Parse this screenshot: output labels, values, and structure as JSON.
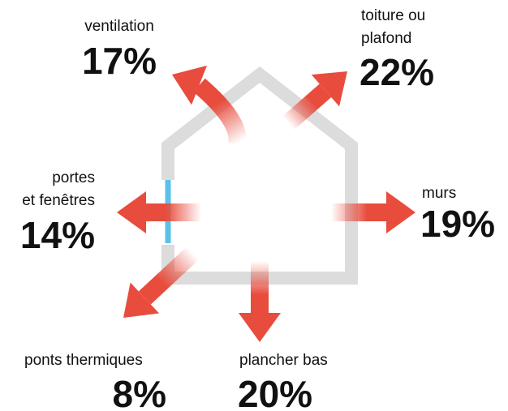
{
  "items": [
    {
      "label": [
        "ventilation"
      ],
      "value": "17%"
    },
    {
      "label": [
        "toiture ou",
        "plafond"
      ],
      "value": "22%"
    },
    {
      "label": [
        "murs"
      ],
      "value": "19%"
    },
    {
      "label": [
        "portes",
        "et fenêtres"
      ],
      "value": "14%"
    },
    {
      "label": [
        "ponts thermiques"
      ],
      "value": "8%"
    },
    {
      "label": [
        "plancher bas"
      ],
      "value": "20%"
    }
  ]
}
